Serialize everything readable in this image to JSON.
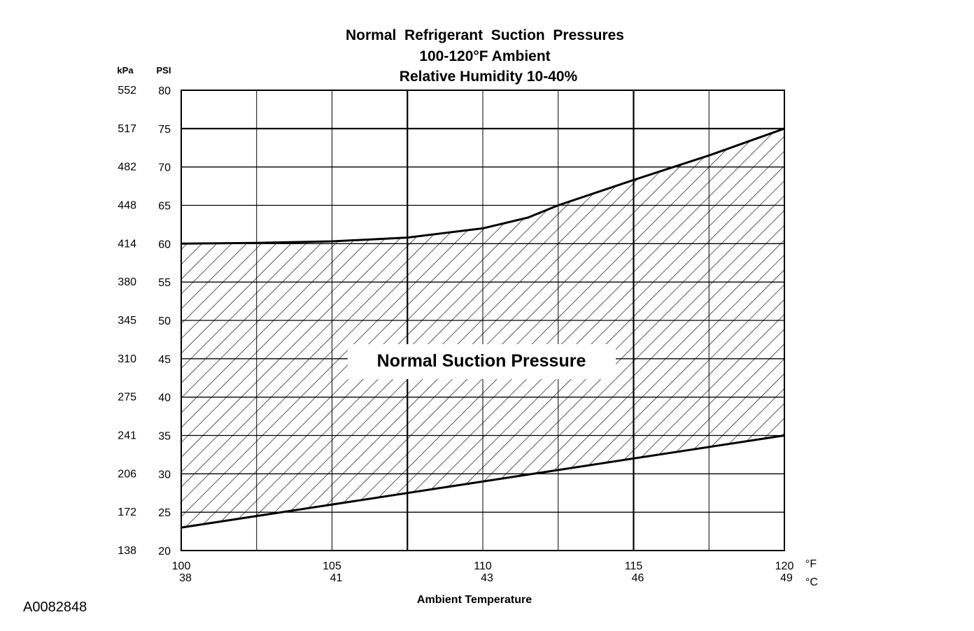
{
  "chart_data": {
    "type": "area",
    "title_lines": [
      "Normal  Refrigerant  Suction  Pressures",
      "100-120°F Ambient",
      "Relative Humidity 10-40%"
    ],
    "xlabel": "Ambient Temperature",
    "x_unit_f": "°F",
    "x_unit_c": "°C",
    "xlim": [
      100,
      120
    ],
    "x_ticks_f": [
      "100",
      "105",
      "110",
      "115",
      "120"
    ],
    "x_ticks_c": [
      "38",
      "41",
      "43",
      "46",
      "49"
    ],
    "y_unit_psi": "PSI",
    "y_unit_kpa": "kPa",
    "ylim": [
      20,
      80
    ],
    "y_ticks_psi": [
      "20",
      "25",
      "30",
      "35",
      "40",
      "45",
      "50",
      "55",
      "60",
      "65",
      "70",
      "75",
      "80"
    ],
    "y_ticks_kpa": [
      "138",
      "172",
      "206",
      "241",
      "275",
      "310",
      "345",
      "380",
      "414",
      "448",
      "482",
      "517",
      "552"
    ],
    "x_gridlines": [
      102.5,
      105,
      107.5,
      110,
      112.5,
      115,
      117.5
    ],
    "x_gridlines_heavy": [
      107.5,
      115
    ],
    "y_gridlines_heavy": [
      75
    ],
    "grid": true,
    "region_label": "Normal Suction Pressure",
    "upper_bound": {
      "x": [
        100,
        102.5,
        105,
        107.5,
        110,
        111.5,
        112.5,
        115,
        117.5,
        120
      ],
      "y": [
        60,
        60.1,
        60.3,
        60.8,
        62,
        63.4,
        65,
        68.3,
        71.5,
        75
      ]
    },
    "lower_bound": {
      "x": [
        100,
        120
      ],
      "y": [
        23,
        35
      ]
    }
  },
  "figure_id": "A0082848"
}
